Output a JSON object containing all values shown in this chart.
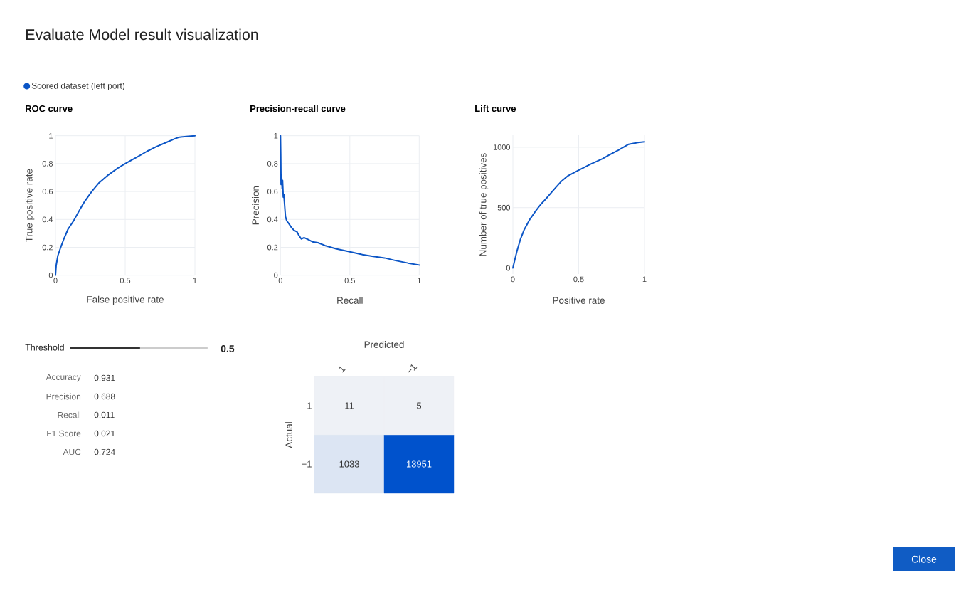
{
  "chart_data": [
    {
      "type": "other",
      "title": "Evaluate Model result visualization",
      "annotations": [
        "Close"
      ]
    },
    {
      "type": "line",
      "title": "ROC curve",
      "xlabel": "False positive rate",
      "ylabel": "True positive rate",
      "xlim": [
        0,
        1
      ],
      "ylim": [
        0,
        1
      ],
      "xticks": [
        0,
        0.5,
        1
      ],
      "yticks": [
        0,
        0.2,
        0.4,
        0.6,
        0.8,
        1
      ],
      "grid": true,
      "legend": "top left",
      "series": [
        {
          "name": "Scored dataset (left port)",
          "color": "#0b55c6",
          "x": [
            0,
            0.005,
            0.017,
            0.034,
            0.06,
            0.09,
            0.13,
            0.18,
            0.21,
            0.26,
            0.31,
            0.38,
            0.45,
            0.5,
            0.59,
            0.66,
            0.72,
            0.79,
            0.86,
            0.89,
            0.94,
            1
          ],
          "values": [
            0,
            0.07,
            0.14,
            0.19,
            0.26,
            0.33,
            0.39,
            0.48,
            0.53,
            0.6,
            0.66,
            0.72,
            0.77,
            0.8,
            0.85,
            0.89,
            0.92,
            0.95,
            0.98,
            0.99,
            0.995,
            1
          ]
        }
      ]
    },
    {
      "type": "line",
      "title": "Precision-recall curve",
      "xlabel": "Recall",
      "ylabel": "Precision",
      "xlim": [
        0,
        1
      ],
      "ylim": [
        0,
        1
      ],
      "xticks": [
        0,
        0.5,
        1
      ],
      "yticks": [
        0,
        0.2,
        0.4,
        0.6,
        0.8,
        1
      ],
      "grid": true,
      "series": [
        {
          "color": "#0b55c6",
          "x": [
            0,
            0.002,
            0.004,
            0.008,
            0.012,
            0.015,
            0.02,
            0.024,
            0.03,
            0.036,
            0.045,
            0.06,
            0.08,
            0.1,
            0.12,
            0.13,
            0.15,
            0.17,
            0.2,
            0.23,
            0.27,
            0.32,
            0.4,
            0.5,
            0.58,
            0.66,
            0.75,
            0.83,
            0.92,
            1
          ],
          "values": [
            1,
            0.86,
            0.65,
            0.72,
            0.62,
            0.68,
            0.56,
            0.58,
            0.5,
            0.42,
            0.39,
            0.37,
            0.34,
            0.32,
            0.31,
            0.29,
            0.26,
            0.27,
            0.255,
            0.24,
            0.233,
            0.213,
            0.19,
            0.168,
            0.15,
            0.136,
            0.124,
            0.105,
            0.087,
            0.073
          ]
        }
      ]
    },
    {
      "type": "line",
      "title": "Lift curve",
      "xlabel": "Positive rate",
      "ylabel": "Number of true positives",
      "xlim": [
        0,
        1
      ],
      "ylim": [
        -50,
        1100
      ],
      "xticks": [
        0,
        0.5,
        1
      ],
      "yticks": [
        0,
        500,
        1000
      ],
      "grid": true,
      "series": [
        {
          "color": "#0b55c6",
          "x": [
            0,
            0.013,
            0.031,
            0.058,
            0.085,
            0.13,
            0.175,
            0.21,
            0.265,
            0.32,
            0.37,
            0.42,
            0.5,
            0.59,
            0.68,
            0.73,
            0.8,
            0.88,
            0.95,
            1
          ],
          "values": [
            0,
            60,
            140,
            240,
            315,
            405,
            475,
            525,
            590,
            660,
            720,
            765,
            810,
            860,
            905,
            935,
            975,
            1025,
            1040,
            1045
          ]
        }
      ]
    },
    {
      "type": "other",
      "categories": [
        "Threshold",
        "Accuracy",
        "Precision",
        "Recall",
        "F1 Score",
        "AUC"
      ],
      "values": [
        0.5,
        0.931,
        0.688,
        0.011,
        0.021,
        0.724
      ],
      "data_labels": true
    },
    {
      "type": "heatmap",
      "xlabel": "Predicted",
      "ylabel": "Actual",
      "categories": [
        "1",
        "−1"
      ],
      "y_categories": [
        "1",
        "−1"
      ],
      "cells": [
        [
          11,
          5
        ],
        [
          1033,
          13951
        ]
      ],
      "color": "#0052cc",
      "data_labels": true
    }
  ]
}
